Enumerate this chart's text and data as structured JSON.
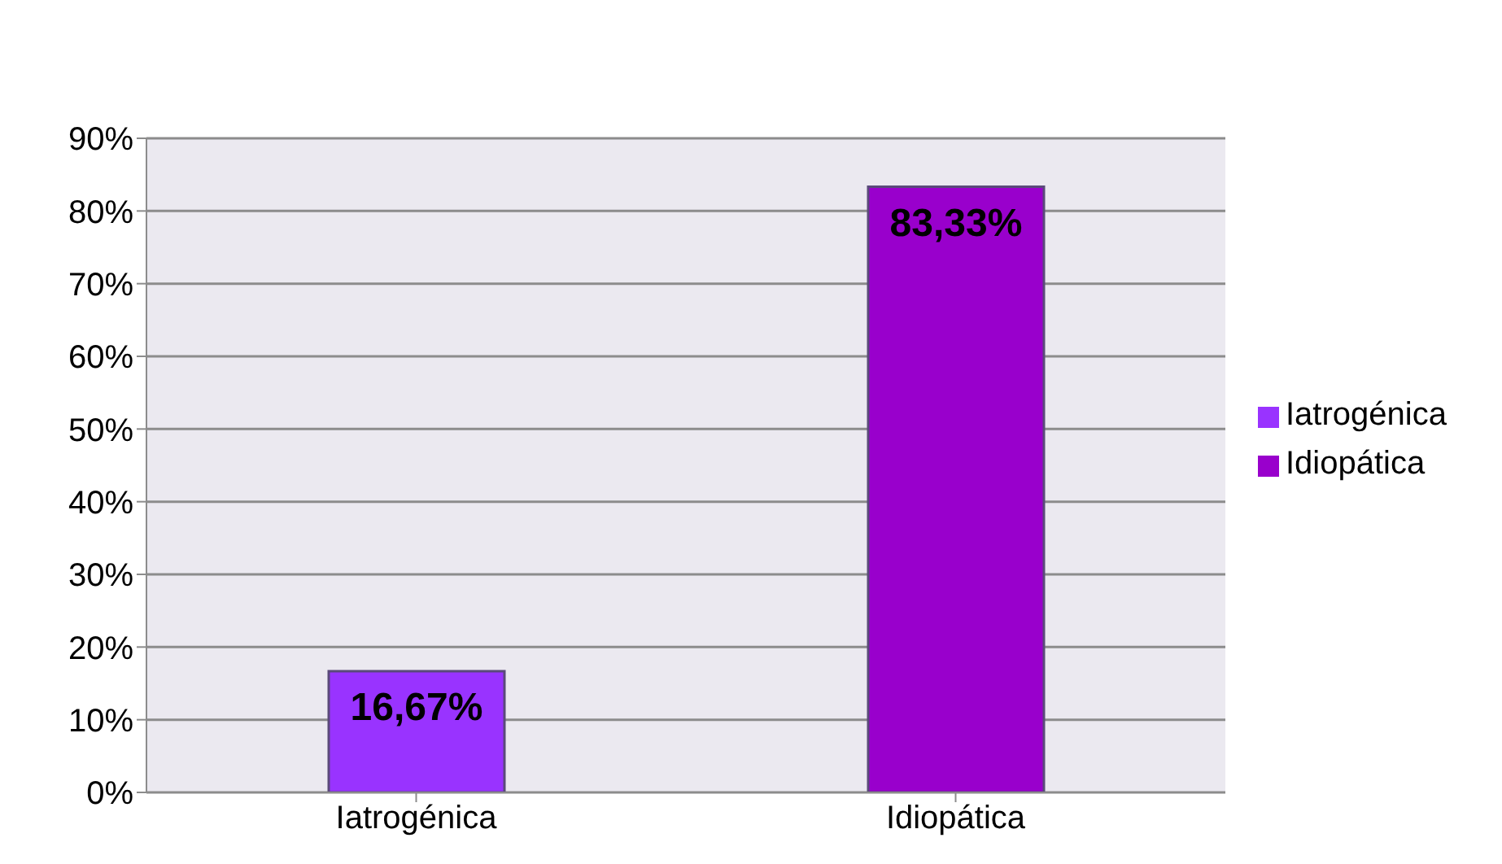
{
  "chart_data": {
    "type": "bar",
    "categories": [
      "Iatrogénica",
      "Idiopática"
    ],
    "series": [
      {
        "name": "Iatrogénica",
        "color": "#9933ff",
        "values": [
          16.67,
          null
        ],
        "value_labels": [
          "16,67%",
          null
        ]
      },
      {
        "name": "Idiopática",
        "color": "#9900cc",
        "values": [
          null,
          83.33
        ],
        "value_labels": [
          null,
          "83,33%"
        ]
      }
    ],
    "stacked": true,
    "ylim": [
      0,
      90
    ],
    "yticks": [
      {
        "value": 0,
        "label": "0%"
      },
      {
        "value": 10,
        "label": "10%"
      },
      {
        "value": 20,
        "label": "20%"
      },
      {
        "value": 30,
        "label": "30%"
      },
      {
        "value": 40,
        "label": "40%"
      },
      {
        "value": 50,
        "label": "50%"
      },
      {
        "value": 60,
        "label": "60%"
      },
      {
        "value": 70,
        "label": "70%"
      },
      {
        "value": 80,
        "label": "80%"
      },
      {
        "value": 90,
        "label": "90%"
      }
    ],
    "grid": "y",
    "legend": "right"
  }
}
